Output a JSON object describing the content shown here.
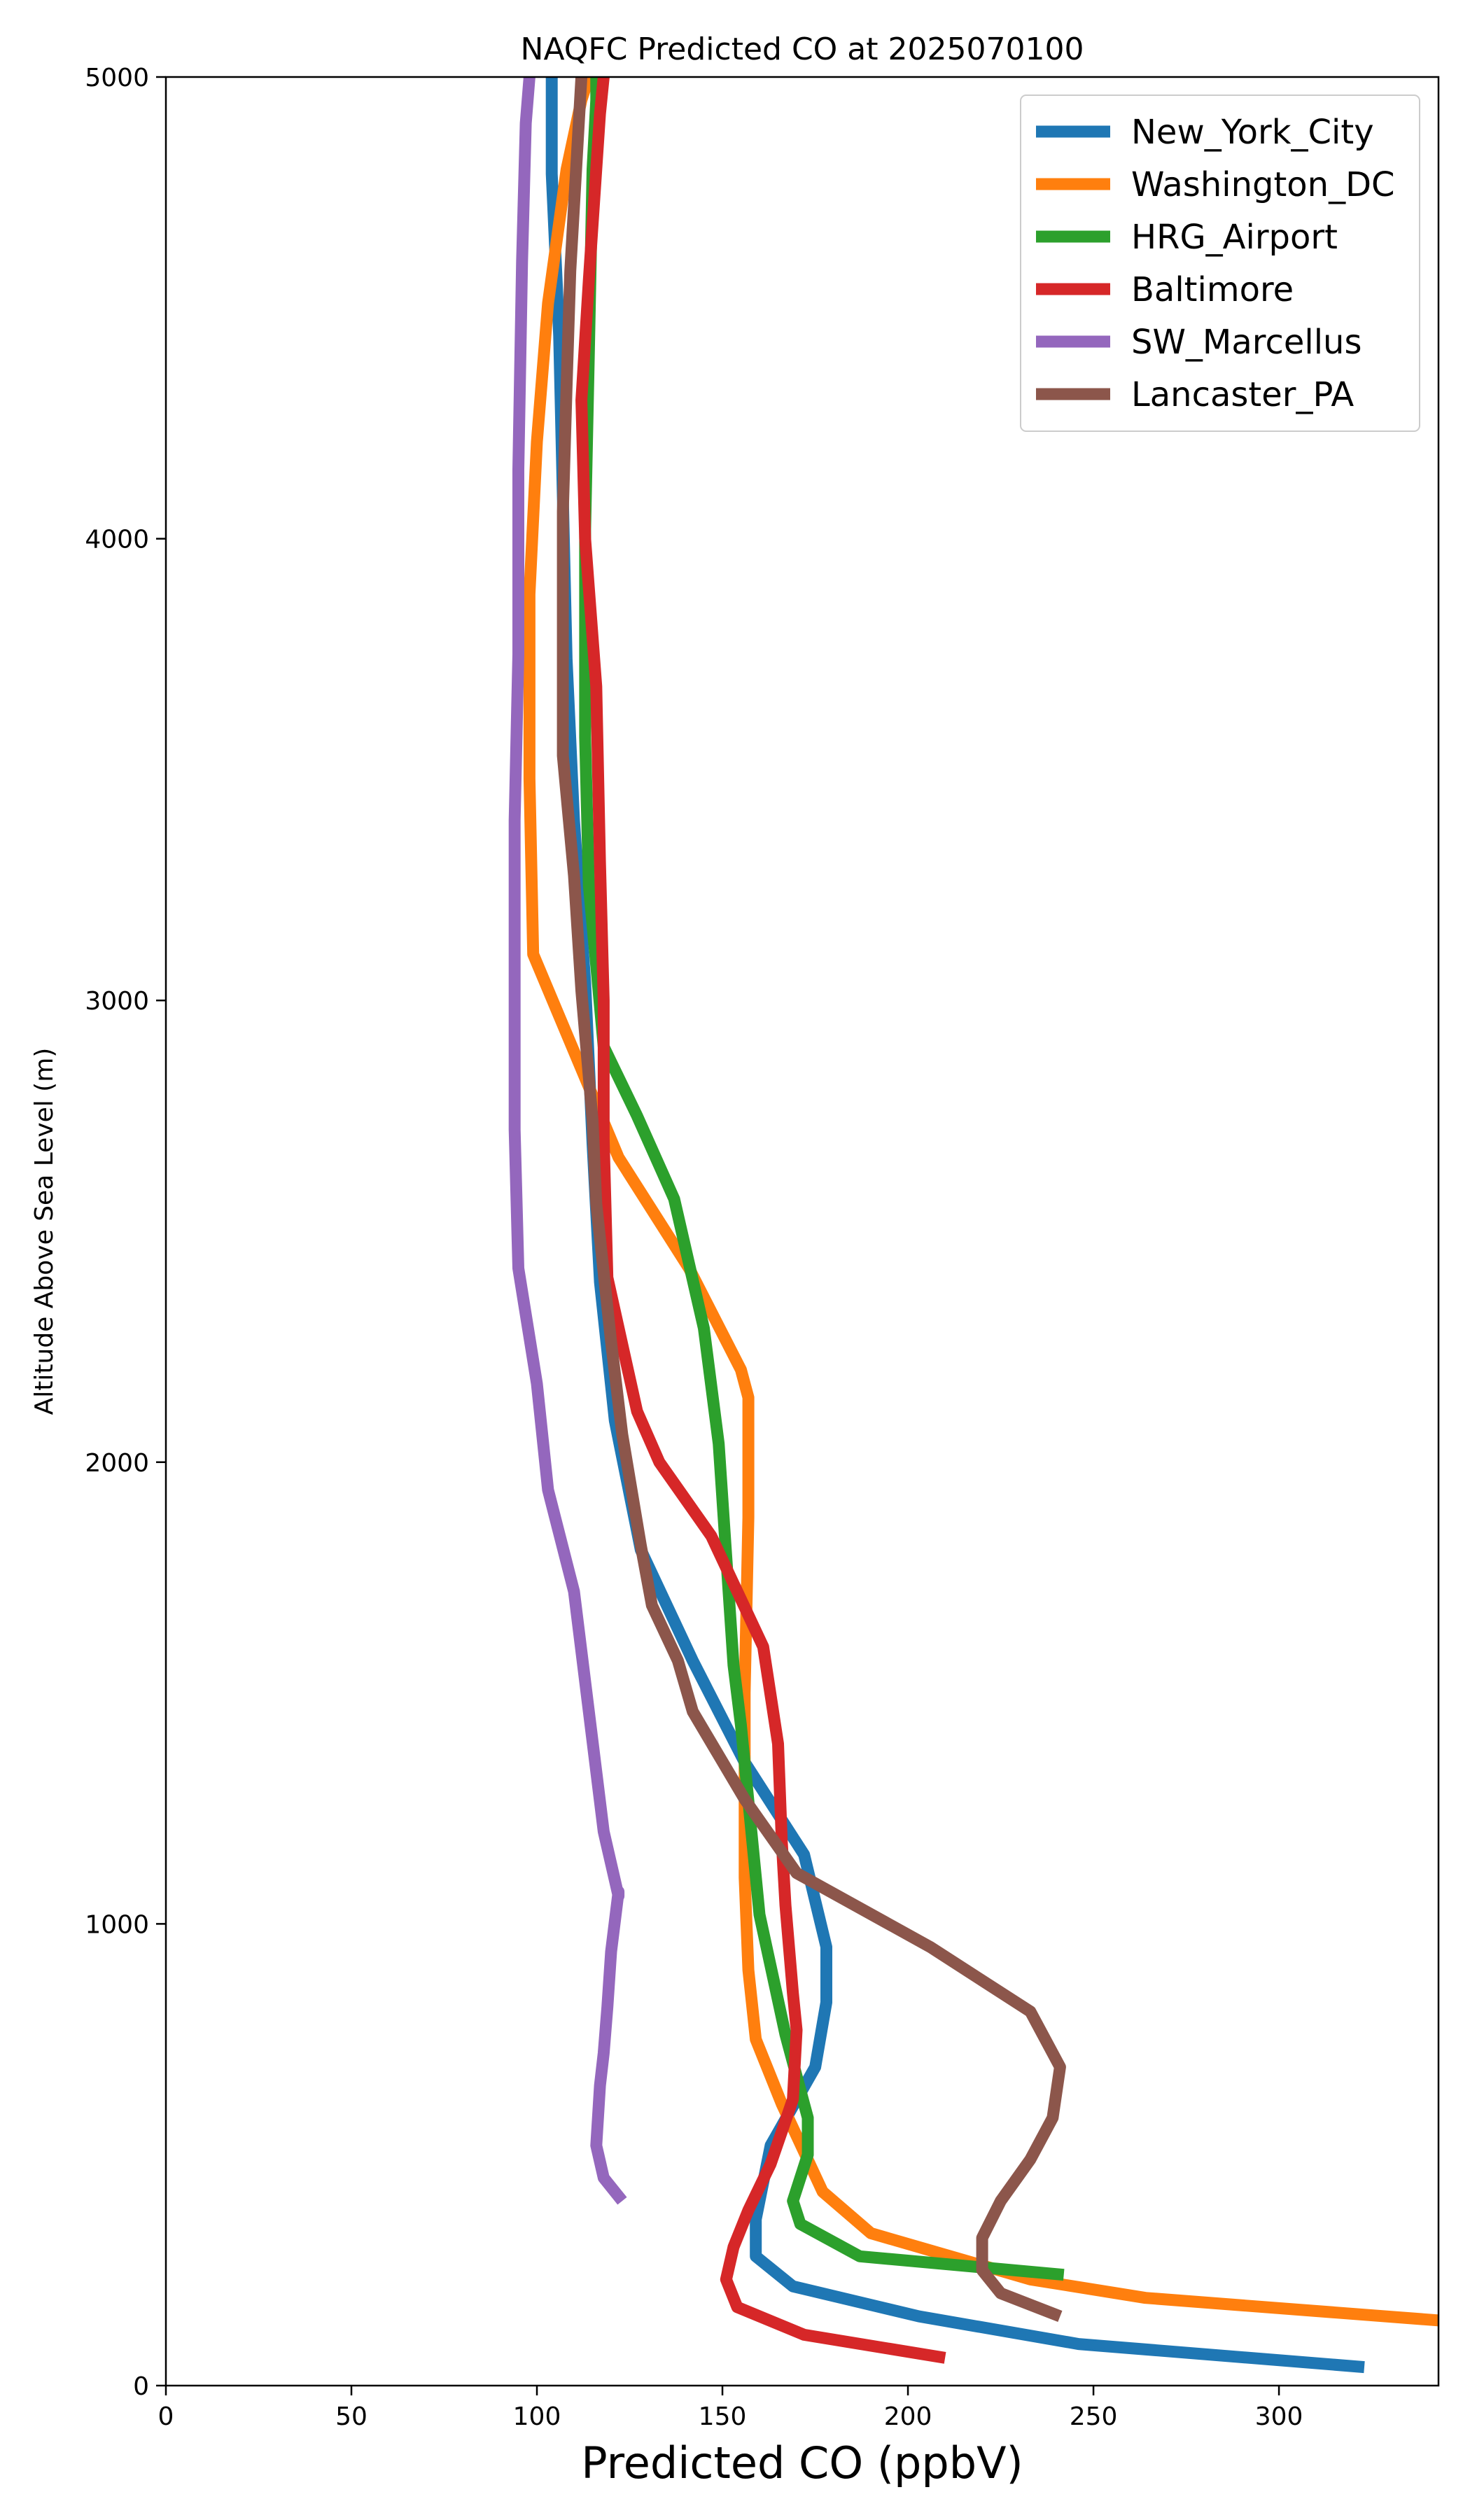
{
  "chart_data": {
    "type": "line",
    "title": "NAQFC Predicted CO at 2025070100",
    "xlabel": "Predicted CO (ppbV)",
    "ylabel": "Altitude Above Sea Level (m)",
    "xlim": [
      0,
      343
    ],
    "ylim": [
      0,
      5000
    ],
    "xticks": [
      0,
      50,
      100,
      150,
      200,
      250,
      300
    ],
    "yticks": [
      0,
      1000,
      2000,
      3000,
      4000,
      5000
    ],
    "grid": false,
    "legend_position": "top-right",
    "series": [
      {
        "name": "New_York_City",
        "color": "#1f77b4",
        "x": [
          323,
          246,
          203,
          169,
          159,
          159,
          163,
          175,
          178,
          178,
          172,
          156,
          142,
          128,
          121,
          117,
          115,
          113,
          110,
          108,
          107,
          106,
          104,
          104
        ],
        "y": [
          40,
          90,
          150,
          215,
          280,
          360,
          520,
          690,
          830,
          950,
          1150,
          1350,
          1570,
          1810,
          2090,
          2390,
          2690,
          3040,
          3390,
          3740,
          4090,
          4440,
          4790,
          5000
        ]
      },
      {
        "name": "Washington_DC",
        "color": "#ff7f0e",
        "x": [
          345,
          264,
          233,
          190,
          177,
          166,
          159,
          157,
          156,
          156,
          157,
          157,
          155,
          141,
          122,
          99,
          98,
          98,
          100,
          103,
          108,
          112,
          114
        ],
        "y": [
          140,
          190,
          230,
          330,
          420,
          610,
          750,
          900,
          1100,
          1500,
          1880,
          2140,
          2200,
          2420,
          2660,
          3100,
          3480,
          3880,
          4210,
          4510,
          4800,
          4950,
          5000
        ]
      },
      {
        "name": "HRG_Airport",
        "color": "#2ca02c",
        "x": [
          242,
          187,
          171,
          169,
          173,
          173,
          167,
          160,
          155,
          153,
          149,
          145,
          137,
          127,
          118,
          114,
          113,
          113,
          113,
          114,
          115,
          116,
          116
        ],
        "y": [
          240,
          280,
          350,
          400,
          500,
          580,
          760,
          1020,
          1430,
          1560,
          2040,
          2290,
          2570,
          2750,
          2900,
          3250,
          3570,
          3780,
          4020,
          4400,
          4800,
          4950,
          5000
        ]
      },
      {
        "name": "Baltimore",
        "color": "#d62728",
        "x": [
          210,
          172,
          154,
          151,
          153,
          157,
          163,
          169,
          170,
          169,
          167,
          166,
          165,
          161,
          147,
          133,
          127,
          119,
          118,
          118,
          117,
          116,
          113,
          112,
          114,
          116,
          117,
          118
        ],
        "y": [
          60,
          110,
          170,
          230,
          300,
          380,
          480,
          620,
          770,
          850,
          1040,
          1180,
          1390,
          1600,
          1840,
          2000,
          2110,
          2400,
          2700,
          3000,
          3300,
          3680,
          4000,
          4300,
          4560,
          4800,
          4920,
          5000
        ]
      },
      {
        "name": "SW_Marcellus",
        "color": "#9467bd",
        "x": [
          123,
          118,
          116,
          117,
          118,
          119,
          120,
          122,
          122,
          118,
          110,
          103,
          100,
          95,
          94,
          94,
          94,
          95,
          95,
          96,
          97,
          98,
          98
        ],
        "y": [
          400,
          450,
          520,
          650,
          720,
          820,
          940,
          1070,
          1060,
          1200,
          1720,
          1940,
          2170,
          2420,
          2720,
          3030,
          3390,
          3750,
          4150,
          4600,
          4900,
          5000,
          5000
        ]
      },
      {
        "name": "Lancaster_PA",
        "color": "#8c564b",
        "x": [
          241,
          225,
          220,
          220,
          225,
          233,
          239,
          241,
          233,
          206,
          170,
          156,
          142,
          138,
          131,
          128,
          123,
          120,
          116,
          115,
          112,
          110,
          107,
          107,
          107,
          108,
          109,
          111,
          112
        ],
        "y": [
          150,
          200,
          250,
          320,
          400,
          490,
          580,
          690,
          810,
          950,
          1110,
          1270,
          1460,
          1570,
          1690,
          1820,
          2060,
          2260,
          2560,
          2740,
          3020,
          3270,
          3530,
          3790,
          4060,
          4330,
          4580,
          4860,
          5000
        ]
      }
    ]
  }
}
